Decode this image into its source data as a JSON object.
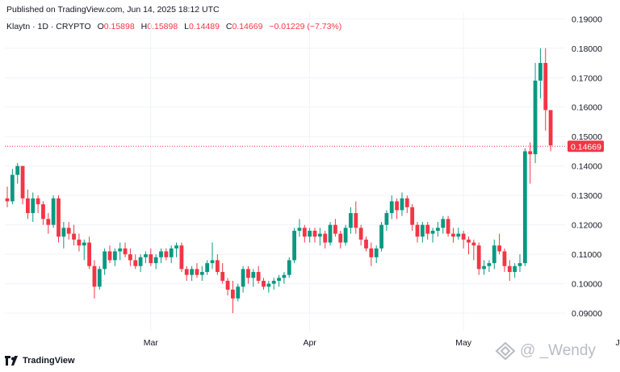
{
  "header": {
    "published": "Published on TradingView.com, Jun 14, 2025 18:12 UTC"
  },
  "legend": {
    "symbol": "Klaytn · 1D · CRYPTO",
    "o_label": "O",
    "o_value": "0.15898",
    "h_label": "H",
    "h_value": "0.15898",
    "l_label": "L",
    "l_value": "0.14489",
    "c_label": "C",
    "c_value": "0.14669",
    "change": "−0.01229 (−7.73%)"
  },
  "footer": {
    "brand": "TradingView"
  },
  "watermark": {
    "text": "@ _Wendy"
  },
  "colors": {
    "up": "#089981",
    "down": "#f23645",
    "grid": "#f0f3fa",
    "text": "#131722"
  },
  "chart_data": {
    "type": "candlestick",
    "ylim": [
      0.084,
      0.192
    ],
    "y_ticks": [
      "0.19000",
      "0.18000",
      "0.17000",
      "0.16000",
      "0.15000",
      "0.14000",
      "0.13000",
      "0.12000",
      "0.11000",
      "0.10000",
      "0.09000"
    ],
    "x_ticks": [
      {
        "label": "Mar",
        "date": "2025-03-01"
      },
      {
        "label": "Apr",
        "date": "2025-04-01"
      },
      {
        "label": "May",
        "date": "2025-05-01"
      },
      {
        "label": "Jun",
        "date": "2025-06-01"
      }
    ],
    "start_date": "2025-02-01",
    "last_price": "0.14669",
    "last_value": 0.14669,
    "candles": [
      [
        0.129,
        0.133,
        0.126,
        0.128
      ],
      [
        0.128,
        0.139,
        0.127,
        0.137
      ],
      [
        0.137,
        0.141,
        0.134,
        0.14
      ],
      [
        0.14,
        0.14,
        0.127,
        0.129
      ],
      [
        0.129,
        0.132,
        0.122,
        0.124
      ],
      [
        0.124,
        0.131,
        0.121,
        0.129
      ],
      [
        0.129,
        0.13,
        0.124,
        0.127
      ],
      [
        0.127,
        0.128,
        0.12,
        0.122
      ],
      [
        0.122,
        0.124,
        0.117,
        0.12
      ],
      [
        0.12,
        0.13,
        0.119,
        0.129
      ],
      [
        0.129,
        0.13,
        0.114,
        0.116
      ],
      [
        0.116,
        0.121,
        0.112,
        0.119
      ],
      [
        0.119,
        0.121,
        0.115,
        0.117
      ],
      [
        0.117,
        0.12,
        0.113,
        0.115
      ],
      [
        0.115,
        0.117,
        0.111,
        0.113
      ],
      [
        0.113,
        0.115,
        0.108,
        0.114
      ],
      [
        0.114,
        0.116,
        0.105,
        0.106
      ],
      [
        0.106,
        0.108,
        0.095,
        0.099
      ],
      [
        0.099,
        0.106,
        0.098,
        0.105
      ],
      [
        0.105,
        0.112,
        0.103,
        0.111
      ],
      [
        0.111,
        0.113,
        0.107,
        0.108
      ],
      [
        0.108,
        0.112,
        0.106,
        0.111
      ],
      [
        0.111,
        0.114,
        0.108,
        0.112
      ],
      [
        0.112,
        0.114,
        0.109,
        0.11
      ],
      [
        0.11,
        0.112,
        0.106,
        0.108
      ],
      [
        0.108,
        0.11,
        0.105,
        0.106
      ],
      [
        0.106,
        0.11,
        0.104,
        0.109
      ],
      [
        0.109,
        0.111,
        0.107,
        0.11
      ],
      [
        0.11,
        0.112,
        0.106,
        0.107
      ],
      [
        0.107,
        0.11,
        0.105,
        0.109
      ],
      [
        0.109,
        0.112,
        0.107,
        0.111
      ],
      [
        0.111,
        0.112,
        0.108,
        0.109
      ],
      [
        0.109,
        0.113,
        0.107,
        0.112
      ],
      [
        0.112,
        0.114,
        0.109,
        0.113
      ],
      [
        0.113,
        0.114,
        0.104,
        0.105
      ],
      [
        0.105,
        0.106,
        0.101,
        0.103
      ],
      [
        0.103,
        0.106,
        0.101,
        0.105
      ],
      [
        0.105,
        0.107,
        0.102,
        0.103
      ],
      [
        0.103,
        0.106,
        0.101,
        0.104
      ],
      [
        0.104,
        0.108,
        0.103,
        0.107
      ],
      [
        0.107,
        0.114,
        0.105,
        0.108
      ],
      [
        0.108,
        0.11,
        0.103,
        0.104
      ],
      [
        0.104,
        0.107,
        0.1,
        0.101
      ],
      [
        0.101,
        0.102,
        0.096,
        0.098
      ],
      [
        0.098,
        0.101,
        0.09,
        0.095
      ],
      [
        0.095,
        0.1,
        0.094,
        0.099
      ],
      [
        0.099,
        0.106,
        0.097,
        0.105
      ],
      [
        0.105,
        0.106,
        0.1,
        0.102
      ],
      [
        0.102,
        0.105,
        0.099,
        0.104
      ],
      [
        0.104,
        0.106,
        0.1,
        0.101
      ],
      [
        0.101,
        0.102,
        0.098,
        0.099
      ],
      [
        0.099,
        0.101,
        0.097,
        0.1
      ],
      [
        0.1,
        0.102,
        0.098,
        0.101
      ],
      [
        0.101,
        0.103,
        0.099,
        0.102
      ],
      [
        0.102,
        0.104,
        0.1,
        0.103
      ],
      [
        0.103,
        0.109,
        0.102,
        0.108
      ],
      [
        0.108,
        0.119,
        0.107,
        0.118
      ],
      [
        0.118,
        0.122,
        0.116,
        0.119
      ],
      [
        0.119,
        0.12,
        0.114,
        0.116
      ],
      [
        0.116,
        0.119,
        0.114,
        0.118
      ],
      [
        0.118,
        0.119,
        0.114,
        0.116
      ],
      [
        0.116,
        0.119,
        0.113,
        0.117
      ],
      [
        0.117,
        0.118,
        0.112,
        0.114
      ],
      [
        0.114,
        0.121,
        0.113,
        0.12
      ],
      [
        0.12,
        0.122,
        0.116,
        0.117
      ],
      [
        0.117,
        0.118,
        0.112,
        0.114
      ],
      [
        0.114,
        0.12,
        0.113,
        0.119
      ],
      [
        0.119,
        0.126,
        0.117,
        0.124
      ],
      [
        0.124,
        0.128,
        0.117,
        0.119
      ],
      [
        0.119,
        0.12,
        0.113,
        0.115
      ],
      [
        0.115,
        0.116,
        0.111,
        0.112
      ],
      [
        0.112,
        0.114,
        0.106,
        0.109
      ],
      [
        0.109,
        0.113,
        0.107,
        0.112
      ],
      [
        0.112,
        0.121,
        0.111,
        0.12
      ],
      [
        0.12,
        0.125,
        0.118,
        0.124
      ],
      [
        0.124,
        0.13,
        0.122,
        0.128
      ],
      [
        0.128,
        0.129,
        0.122,
        0.125
      ],
      [
        0.125,
        0.131,
        0.123,
        0.129
      ],
      [
        0.129,
        0.13,
        0.124,
        0.126
      ],
      [
        0.126,
        0.127,
        0.118,
        0.12
      ],
      [
        0.12,
        0.121,
        0.114,
        0.116
      ],
      [
        0.116,
        0.121,
        0.114,
        0.12
      ],
      [
        0.12,
        0.121,
        0.115,
        0.117
      ],
      [
        0.117,
        0.119,
        0.114,
        0.118
      ],
      [
        0.118,
        0.121,
        0.116,
        0.119
      ],
      [
        0.119,
        0.123,
        0.117,
        0.122
      ],
      [
        0.122,
        0.123,
        0.116,
        0.117
      ],
      [
        0.117,
        0.119,
        0.114,
        0.116
      ],
      [
        0.116,
        0.119,
        0.115,
        0.117
      ],
      [
        0.117,
        0.118,
        0.112,
        0.115
      ],
      [
        0.115,
        0.116,
        0.11,
        0.114
      ],
      [
        0.114,
        0.115,
        0.108,
        0.113
      ],
      [
        0.113,
        0.114,
        0.103,
        0.105
      ],
      [
        0.105,
        0.108,
        0.103,
        0.106
      ],
      [
        0.106,
        0.108,
        0.104,
        0.107
      ],
      [
        0.107,
        0.115,
        0.105,
        0.113
      ],
      [
        0.113,
        0.117,
        0.11,
        0.111
      ],
      [
        0.111,
        0.112,
        0.104,
        0.106
      ],
      [
        0.106,
        0.108,
        0.101,
        0.104
      ],
      [
        0.104,
        0.107,
        0.102,
        0.106
      ],
      [
        0.106,
        0.11,
        0.104,
        0.107
      ],
      [
        0.107,
        0.146,
        0.106,
        0.145
      ],
      [
        0.145,
        0.148,
        0.134,
        0.144
      ],
      [
        0.144,
        0.175,
        0.141,
        0.169
      ],
      [
        0.169,
        0.18,
        0.163,
        0.175
      ],
      [
        0.175,
        0.18,
        0.152,
        0.159
      ],
      [
        0.159,
        0.159,
        0.145,
        0.147
      ]
    ]
  }
}
